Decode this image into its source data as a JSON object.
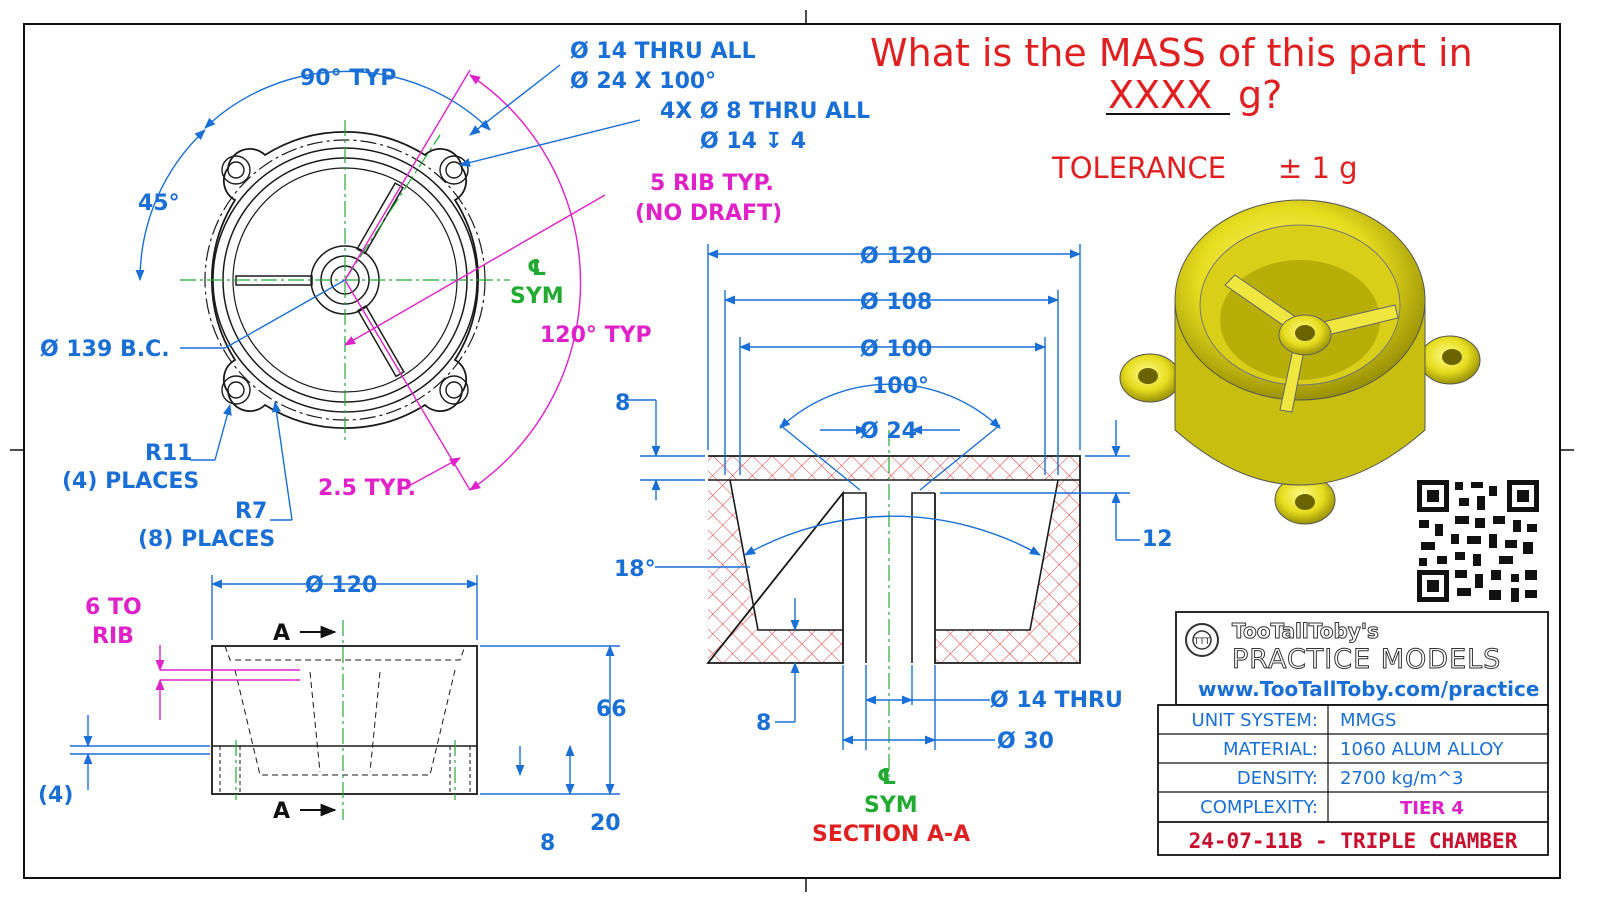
{
  "question": {
    "line1": "What is the MASS of this part in",
    "blank": "XXXX",
    "unit": "g?",
    "tolerance_label": "TOLERANCE",
    "tolerance_value": "± 1 g"
  },
  "top_view": {
    "angle_90": "90° TYP",
    "angle_45": "45°",
    "hole_main_1": "Ø 14 THRU ALL",
    "hole_main_2": "Ø 24 X 100°",
    "bolt_holes_1": "4X Ø 8 THRU ALL",
    "bolt_holes_2": "Ø 14 ↧ 4",
    "rib_note_1": "5 RIB TYP.",
    "rib_note_2": "(NO DRAFT)",
    "cl_sym_1": "℄",
    "cl_sym_2": "SYM",
    "angle_120": "120° TYP",
    "bolt_circle": "Ø 139 B.C.",
    "r11_1": "R11",
    "r11_2": "(4) PLACES",
    "r7_1": "R7",
    "r7_2": "(8) PLACES",
    "rib_thk": "2.5 TYP."
  },
  "front_view": {
    "dia_120": "Ø 120",
    "six_to_rib_1": "6 TO",
    "six_to_rib_2": "RIB",
    "section_a_top": "A",
    "section_a_bot": "A",
    "height_66": "66",
    "four": "(4)",
    "twenty": "20",
    "eight": "8"
  },
  "section": {
    "d120": "Ø 120",
    "d108": "Ø 108",
    "d100": "Ø 100",
    "angle_100": "100°",
    "d24": "Ø 24",
    "eight_top": "8",
    "twelve": "12",
    "angle_18": "18°",
    "eight_bot": "8",
    "d14": "Ø 14 THRU",
    "d30": "Ø 30",
    "cl_1": "℄",
    "cl_2": "SYM",
    "title": "SECTION A-A"
  },
  "logo": {
    "name": "TooTallToby's",
    "sub": "PRACTICE MODELS",
    "url": "www.TooTallToby.com/practice"
  },
  "title_block": {
    "rows": [
      {
        "label": "UNIT SYSTEM:",
        "value": "MMGS"
      },
      {
        "label": "MATERIAL:",
        "value": "1060 ALUM ALLOY"
      },
      {
        "label": "DENSITY:",
        "value": "2700 kg/m^3"
      },
      {
        "label": "COMPLEXITY:",
        "value": "TIER 4"
      }
    ],
    "part_id": "24-07-11B - TRIPLE CHAMBER"
  },
  "colors": {
    "dimension": "#1a6fd6",
    "note": "#e020c8",
    "centerline": "#22aa33",
    "question": "#e02020",
    "part": "#e8e020"
  },
  "icons": [
    "qr-code-icon",
    "logo-seal-icon"
  ]
}
